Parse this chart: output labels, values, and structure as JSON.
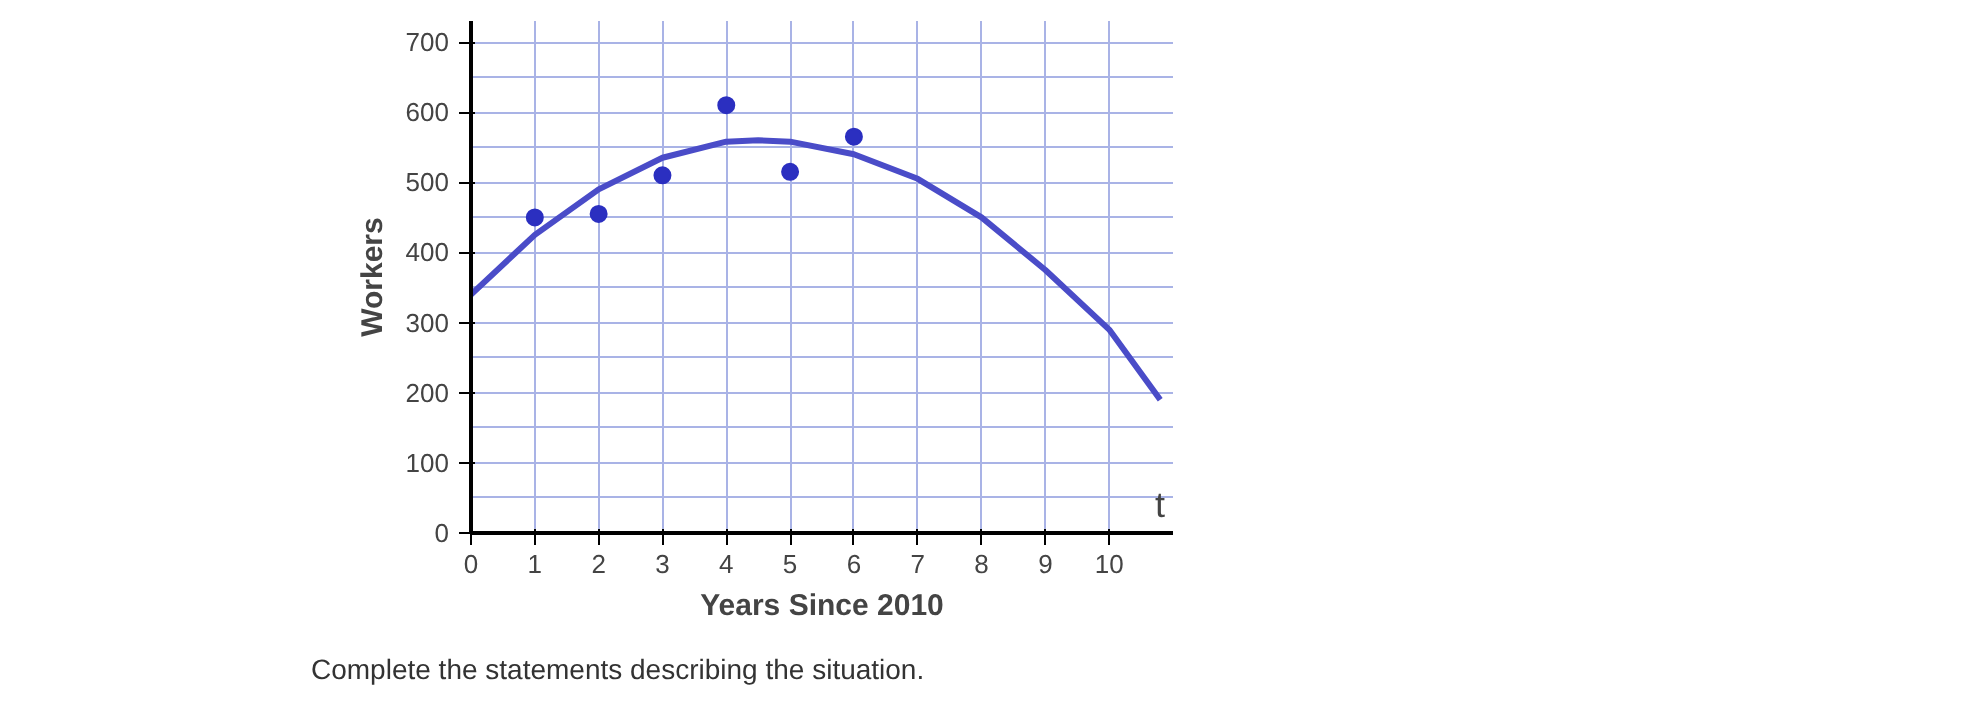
{
  "chart_data": {
    "type": "scatter",
    "xlabel": "Years Since 2010",
    "ylabel": "Workers",
    "xlim": [
      0,
      11
    ],
    "ylim": [
      0,
      730
    ],
    "xticks": [
      0,
      1,
      2,
      3,
      4,
      5,
      6,
      7,
      8,
      9,
      10
    ],
    "yticks": [
      0,
      100,
      200,
      300,
      400,
      500,
      600,
      700
    ],
    "grid": true,
    "series": [
      {
        "marker": "circle",
        "color": "#2b2fc0",
        "x": [
          1,
          2,
          3,
          4,
          5,
          6
        ],
        "values": [
          450,
          455,
          510,
          610,
          515,
          565
        ]
      },
      {
        "type": "line",
        "marker": "none",
        "color": "#4a4cc8",
        "x": [
          0,
          1,
          2,
          3,
          4,
          4.5,
          5,
          6,
          7,
          8,
          9,
          10,
          10.8
        ],
        "values": [
          340,
          425,
          490,
          535,
          558,
          560,
          558,
          540,
          505,
          450,
          375,
          290,
          190
        ]
      }
    ],
    "annotations": [
      "t",
      "Complete the statements describing the situation."
    ]
  }
}
